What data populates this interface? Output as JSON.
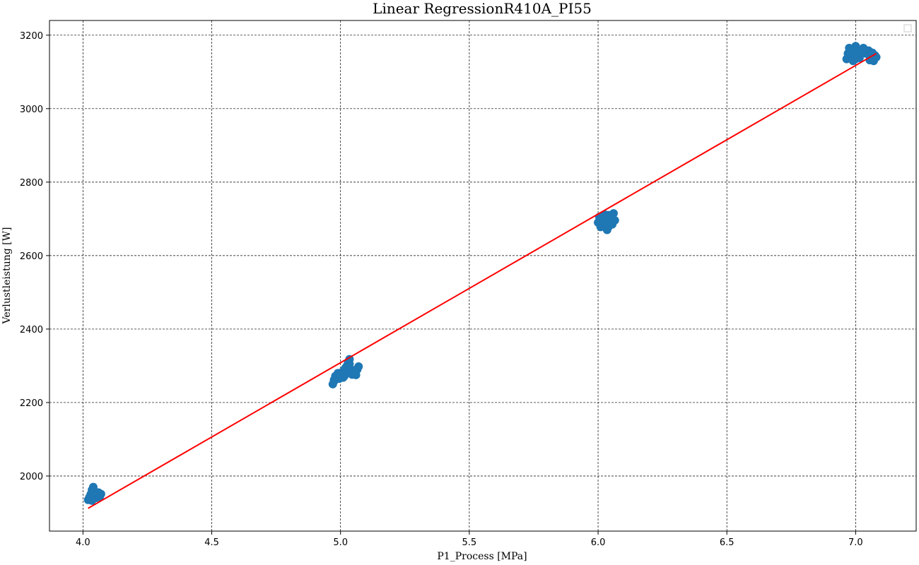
{
  "chart_data": {
    "type": "scatter",
    "title": "Linear RegressionR410A_PI55",
    "xlabel": "P1_Process [MPa]",
    "ylabel": "Verlustleistung [W]",
    "xlim": [
      3.87,
      7.235
    ],
    "ylim": [
      1850,
      3240
    ],
    "x_ticks": [
      4.0,
      4.5,
      5.0,
      5.5,
      6.0,
      6.5,
      7.0
    ],
    "y_ticks": [
      2000,
      2200,
      2400,
      2600,
      2800,
      3000,
      3200
    ],
    "x_tick_labels": [
      "4.0",
      "4.5",
      "5.0",
      "5.5",
      "6.0",
      "6.5",
      "7.0"
    ],
    "y_tick_labels": [
      "2000",
      "2200",
      "2400",
      "2600",
      "2800",
      "3000",
      "3200"
    ],
    "grid": true,
    "legend": "top-right",
    "series": [
      {
        "kind": "scatter",
        "color": "#1f77b4",
        "points": [
          [
            4.02,
            1935
          ],
          [
            4.025,
            1942
          ],
          [
            4.03,
            1950
          ],
          [
            4.035,
            1962
          ],
          [
            4.04,
            1970
          ],
          [
            4.04,
            1945
          ],
          [
            4.045,
            1952
          ],
          [
            4.05,
            1940
          ],
          [
            4.055,
            1948
          ],
          [
            4.06,
            1955
          ],
          [
            4.065,
            1943
          ],
          [
            4.07,
            1951
          ],
          [
            4.03,
            1938
          ],
          [
            4.045,
            1958
          ],
          [
            4.035,
            1933
          ],
          [
            4.97,
            2250
          ],
          [
            4.975,
            2262
          ],
          [
            4.98,
            2272
          ],
          [
            4.985,
            2266
          ],
          [
            4.99,
            2280
          ],
          [
            4.995,
            2270
          ],
          [
            5.0,
            2276
          ],
          [
            5.005,
            2282
          ],
          [
            5.01,
            2268
          ],
          [
            5.015,
            2290
          ],
          [
            5.02,
            2295
          ],
          [
            5.025,
            2300
          ],
          [
            5.03,
            2310
          ],
          [
            5.035,
            2318
          ],
          [
            5.04,
            2285
          ],
          [
            5.045,
            2276
          ],
          [
            5.05,
            2279
          ],
          [
            5.055,
            2288
          ],
          [
            5.06,
            2275
          ],
          [
            5.065,
            2290
          ],
          [
            5.07,
            2298
          ],
          [
            4.975,
            2258
          ],
          [
            4.995,
            2265
          ],
          [
            5.015,
            2272
          ],
          [
            5.035,
            2305
          ],
          [
            6.0,
            2690
          ],
          [
            6.005,
            2705
          ],
          [
            6.01,
            2695
          ],
          [
            6.015,
            2685
          ],
          [
            6.02,
            2700
          ],
          [
            6.025,
            2712
          ],
          [
            6.03,
            2690
          ],
          [
            6.035,
            2670
          ],
          [
            6.04,
            2678
          ],
          [
            6.045,
            2695
          ],
          [
            6.05,
            2700
          ],
          [
            6.055,
            2685
          ],
          [
            6.06,
            2715
          ],
          [
            6.065,
            2696
          ],
          [
            6.03,
            2706
          ],
          [
            6.01,
            2678
          ],
          [
            6.04,
            2710
          ],
          [
            6.02,
            2688
          ],
          [
            6.965,
            3135
          ],
          [
            6.97,
            3150
          ],
          [
            6.975,
            3165
          ],
          [
            6.98,
            3145
          ],
          [
            6.985,
            3158
          ],
          [
            6.99,
            3140
          ],
          [
            6.995,
            3155
          ],
          [
            7.0,
            3170
          ],
          [
            7.005,
            3162
          ],
          [
            7.01,
            3148
          ],
          [
            7.015,
            3138
          ],
          [
            7.02,
            3155
          ],
          [
            7.03,
            3165
          ],
          [
            7.04,
            3150
          ],
          [
            7.05,
            3158
          ],
          [
            7.055,
            3132
          ],
          [
            7.06,
            3145
          ],
          [
            7.065,
            3152
          ],
          [
            7.07,
            3130
          ],
          [
            7.075,
            3145
          ],
          [
            7.08,
            3140
          ],
          [
            6.99,
            3130
          ],
          [
            7.0,
            3135
          ]
        ]
      },
      {
        "kind": "line",
        "color": "#ff0000",
        "points": [
          [
            4.02,
            1912
          ],
          [
            7.08,
            3150
          ]
        ]
      }
    ]
  }
}
